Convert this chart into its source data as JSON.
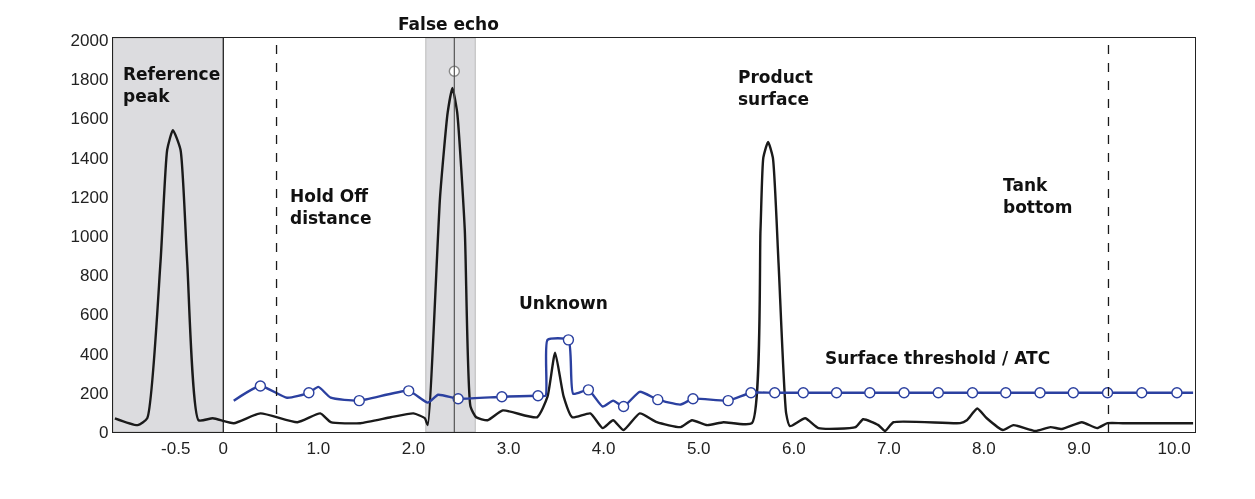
{
  "chart_data": {
    "type": "line",
    "xlim": [
      -1.16,
      10.22
    ],
    "ylim": [
      0,
      2010
    ],
    "xticks": [
      -0.5,
      0,
      {
        "value": 1,
        "label": "1.0"
      },
      {
        "value": 2,
        "label": "2.0"
      },
      {
        "value": 3,
        "label": "3.0"
      },
      {
        "value": 4,
        "label": "4.0"
      },
      {
        "value": 5,
        "label": "5.0"
      },
      {
        "value": 6,
        "label": "6.0"
      },
      {
        "value": 7,
        "label": "7.0"
      },
      {
        "value": 8,
        "label": "8.0"
      },
      {
        "value": 9,
        "label": "9.0"
      },
      {
        "value": 10,
        "label": "10.0"
      }
    ],
    "yticks": [
      0,
      200,
      400,
      600,
      800,
      1000,
      1200,
      1400,
      1600,
      1800,
      2000
    ],
    "grid": false,
    "series": [
      {
        "color": "#1a1a1a",
        "marker": "none",
        "x": [
          -1.14,
          -0.9,
          -0.8,
          -0.66,
          -0.59,
          -0.53,
          -0.45,
          -0.38,
          -0.26,
          -0.11,
          0.11,
          0.39,
          0.78,
          1.02,
          1.13,
          1.44,
          1.76,
          2.0,
          2.12,
          2.15,
          2.28,
          2.36,
          2.41,
          2.46,
          2.54,
          2.6,
          2.66,
          2.78,
          2.94,
          3.3,
          3.41,
          3.49,
          3.58,
          3.67,
          3.86,
          3.99,
          4.1,
          4.21,
          4.38,
          4.56,
          4.81,
          4.93,
          5.09,
          5.26,
          5.56,
          5.65,
          5.68,
          5.73,
          5.78,
          5.84,
          5.92,
          5.96,
          6.12,
          6.26,
          6.65,
          6.73,
          6.89,
          6.96,
          7.05,
          7.75,
          7.82,
          7.93,
          8.03,
          8.2,
          8.31,
          8.54,
          8.7,
          8.82,
          9.03,
          9.19,
          9.3,
          9.46,
          10.2
        ],
        "values": [
          70,
          35,
          70,
          870,
          1440,
          1540,
          1440,
          870,
          60,
          70,
          45,
          95,
          50,
          95,
          50,
          45,
          75,
          95,
          70,
          35,
          1200,
          1630,
          1755,
          1630,
          1030,
          130,
          75,
          60,
          110,
          75,
          180,
          405,
          180,
          75,
          95,
          20,
          60,
          10,
          95,
          50,
          25,
          60,
          35,
          50,
          45,
          1030,
          1400,
          1480,
          1400,
          860,
          95,
          30,
          70,
          20,
          25,
          65,
          35,
          5,
          50,
          45,
          60,
          120,
          70,
          10,
          35,
          5,
          25,
          15,
          50,
          20,
          45,
          45,
          45
        ]
      },
      {
        "color": "#2b40a0",
        "marker": "none",
        "x": [
          0.11,
          0.39,
          0.67,
          0.9,
          1.0,
          1.13,
          1.43,
          1.95,
          2.15,
          2.26,
          2.47,
          2.93,
          3.31,
          3.39,
          3.41,
          3.63,
          3.68,
          3.84,
          3.99,
          4.1,
          4.21,
          4.38,
          4.57,
          4.81,
          4.94,
          5.31,
          5.55,
          5.8,
          10.2
        ],
        "values": [
          160,
          235,
          175,
          200,
          230,
          175,
          160,
          210,
          150,
          190,
          170,
          180,
          185,
          185,
          470,
          470,
          195,
          215,
          130,
          160,
          130,
          205,
          165,
          140,
          170,
          160,
          200,
          200,
          200
        ]
      },
      {
        "type": "scatter",
        "color": "#2b40a0",
        "marker": "circle",
        "x": [
          0.39,
          0.9,
          1.43,
          1.95,
          2.47,
          2.93,
          3.31,
          3.63,
          3.84,
          4.21,
          4.57,
          4.94,
          5.31,
          5.55,
          5.8,
          6.1,
          6.45,
          6.8,
          7.16,
          7.52,
          7.88,
          8.23,
          8.59,
          8.94,
          9.3,
          9.66,
          10.03
        ],
        "values": [
          235,
          200,
          160,
          210,
          170,
          180,
          185,
          470,
          215,
          130,
          165,
          170,
          160,
          200,
          200,
          200,
          200,
          200,
          200,
          200,
          200,
          200,
          200,
          200,
          200,
          200,
          200
        ]
      },
      {
        "type": "scatter",
        "color": "#888888",
        "marker": "circle",
        "x": [
          2.43
        ],
        "values": [
          1840
        ]
      }
    ],
    "bands": [
      {
        "axis": "x",
        "from": -1.16,
        "to": 0,
        "label": "Reference peak",
        "color": "#dcdcdf"
      },
      {
        "axis": "x",
        "from": 2.13,
        "to": 2.65,
        "label": "False echo",
        "color": "#dcdcdf"
      }
    ],
    "ref_lines": [
      {
        "axis": "x",
        "value": 0,
        "color": "#1a1a1a",
        "line_style": "solid"
      },
      {
        "axis": "x",
        "value": 0.56,
        "label": "Hold Off distance",
        "color": "#1a1a1a",
        "line_style": "dashed"
      },
      {
        "axis": "x",
        "value": 2.43,
        "color": "#555555",
        "line_style": "solid"
      },
      {
        "axis": "x",
        "value": 9.31,
        "label": "Tank bottom",
        "color": "#1a1a1a",
        "line_style": "dashed"
      }
    ],
    "annotations": [
      "Unknown",
      "Product surface",
      "Surface threshold / ATC"
    ]
  }
}
